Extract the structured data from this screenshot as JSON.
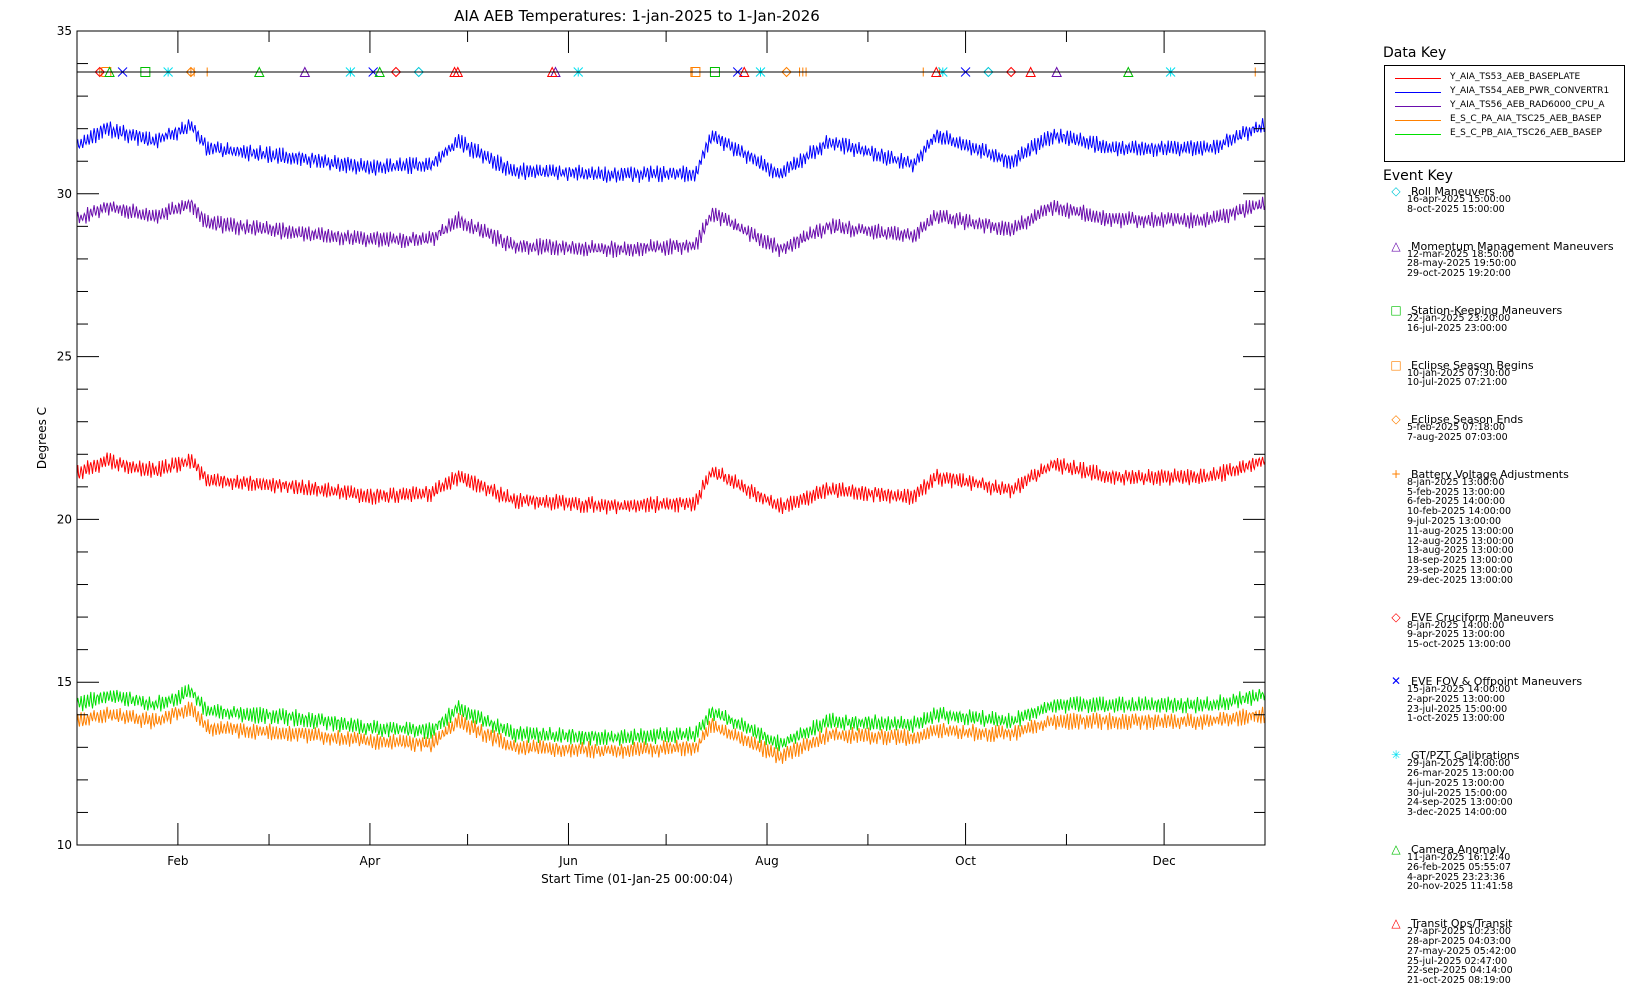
{
  "chart_data": {
    "type": "line",
    "title": "AIA AEB Temperatures: 1-jan-2025 to 1-Jan-2026",
    "xlabel": "Start Time (01-Jan-25 00:00:04)",
    "ylabel": "Degrees C",
    "xlim": [
      "2025-01-01",
      "2026-01-01"
    ],
    "ylim": [
      10,
      35
    ],
    "x_ticks": [
      "Feb",
      "Apr",
      "Jun",
      "Aug",
      "Oct",
      "Dec"
    ],
    "y_ticks": [
      10,
      15,
      20,
      25,
      30,
      35
    ],
    "series": [
      {
        "name": "Y_AIA_TS53_AEB_BASEPLATE",
        "color": "#ff0000",
        "x": [
          "2025-01-01",
          "2025-01-10",
          "2025-01-25",
          "2025-02-05",
          "2025-02-10",
          "2025-03-10",
          "2025-04-01",
          "2025-04-20",
          "2025-04-28",
          "2025-05-15",
          "2025-06-15",
          "2025-07-10",
          "2025-07-15",
          "2025-08-05",
          "2025-08-20",
          "2025-09-15",
          "2025-09-22",
          "2025-10-15",
          "2025-10-28",
          "2025-11-15",
          "2025-12-15",
          "2026-01-01"
        ],
        "values": [
          21.4,
          21.8,
          21.5,
          21.8,
          21.2,
          21.0,
          20.7,
          20.8,
          21.3,
          20.6,
          20.4,
          20.5,
          21.5,
          20.4,
          20.9,
          20.7,
          21.3,
          20.9,
          21.7,
          21.3,
          21.3,
          21.8
        ]
      },
      {
        "name": "Y_AIA_TS54_AEB_PWR_CONVERTR1",
        "color": "#0000ff",
        "x": [
          "2025-01-01",
          "2025-01-10",
          "2025-01-25",
          "2025-02-05",
          "2025-02-10",
          "2025-03-10",
          "2025-04-01",
          "2025-04-20",
          "2025-04-28",
          "2025-05-15",
          "2025-06-15",
          "2025-07-10",
          "2025-07-15",
          "2025-08-05",
          "2025-08-20",
          "2025-09-15",
          "2025-09-22",
          "2025-10-15",
          "2025-10-28",
          "2025-11-15",
          "2025-12-15",
          "2026-01-01"
        ],
        "values": [
          31.5,
          32.0,
          31.6,
          32.1,
          31.4,
          31.1,
          30.8,
          30.9,
          31.6,
          30.7,
          30.6,
          30.6,
          31.8,
          30.6,
          31.6,
          30.9,
          31.8,
          31.0,
          31.8,
          31.4,
          31.4,
          32.1
        ]
      },
      {
        "name": "Y_AIA_TS56_AEB_RAD6000_CPU_A",
        "color": "#6a0dad",
        "x": [
          "2025-01-01",
          "2025-01-10",
          "2025-01-25",
          "2025-02-05",
          "2025-02-10",
          "2025-03-10",
          "2025-04-01",
          "2025-04-20",
          "2025-04-28",
          "2025-05-15",
          "2025-06-15",
          "2025-07-10",
          "2025-07-15",
          "2025-08-05",
          "2025-08-20",
          "2025-09-15",
          "2025-09-22",
          "2025-10-15",
          "2025-10-28",
          "2025-11-15",
          "2025-12-15",
          "2026-01-01"
        ],
        "values": [
          29.2,
          29.6,
          29.3,
          29.7,
          29.1,
          28.8,
          28.6,
          28.6,
          29.2,
          28.4,
          28.3,
          28.4,
          29.4,
          28.3,
          29.0,
          28.7,
          29.3,
          28.9,
          29.6,
          29.2,
          29.2,
          29.7
        ]
      },
      {
        "name": "E_S_C_PA_AIA_TSC25_AEB_BASEP",
        "color": "#ff8000",
        "x": [
          "2025-01-01",
          "2025-01-10",
          "2025-01-25",
          "2025-02-05",
          "2025-02-10",
          "2025-03-10",
          "2025-04-01",
          "2025-04-20",
          "2025-04-28",
          "2025-05-15",
          "2025-06-15",
          "2025-07-10",
          "2025-07-15",
          "2025-08-05",
          "2025-08-20",
          "2025-09-15",
          "2025-09-22",
          "2025-10-15",
          "2025-10-28",
          "2025-11-15",
          "2025-12-15",
          "2026-01-01"
        ],
        "values": [
          13.8,
          14.0,
          13.8,
          14.2,
          13.6,
          13.4,
          13.2,
          13.1,
          13.8,
          13.0,
          12.9,
          13.0,
          13.7,
          12.7,
          13.4,
          13.3,
          13.5,
          13.4,
          13.8,
          13.8,
          13.8,
          14.0
        ]
      },
      {
        "name": "E_S_C_PB_AIA_TSC26_AEB_BASEP",
        "color": "#00e000",
        "x": [
          "2025-01-01",
          "2025-01-10",
          "2025-01-25",
          "2025-02-05",
          "2025-02-10",
          "2025-03-10",
          "2025-04-01",
          "2025-04-20",
          "2025-04-28",
          "2025-05-15",
          "2025-06-15",
          "2025-07-10",
          "2025-07-15",
          "2025-08-05",
          "2025-08-20",
          "2025-09-15",
          "2025-09-22",
          "2025-10-15",
          "2025-10-28",
          "2025-11-15",
          "2025-12-15",
          "2026-01-01"
        ],
        "values": [
          14.3,
          14.6,
          14.3,
          14.7,
          14.1,
          13.9,
          13.6,
          13.5,
          14.2,
          13.4,
          13.3,
          13.4,
          14.1,
          13.1,
          13.8,
          13.7,
          14.0,
          13.8,
          14.3,
          14.3,
          14.3,
          14.6
        ]
      }
    ]
  },
  "data_key": {
    "title": "Data Key"
  },
  "event_key": {
    "title": "Event Key",
    "events": [
      {
        "name": "Roll Maneuvers",
        "symbol": "diamond",
        "color": "#00c8d8",
        "dates": [
          "16-apr-2025 15:00:00",
          "8-oct-2025 15:00:00"
        ]
      },
      {
        "name": "Momentum Management Maneuvers",
        "symbol": "triangle",
        "color": "#6a0dad",
        "dates": [
          "12-mar-2025 18:50:00",
          "28-may-2025 19:50:00",
          "29-oct-2025 19:20:00"
        ]
      },
      {
        "name": "Station-Keeping Maneuvers",
        "symbol": "square",
        "color": "#00c000",
        "dates": [
          "22-jan-2025 23:20:00",
          "16-jul-2025 23:00:00"
        ]
      },
      {
        "name": "Eclipse Season Begins",
        "symbol": "square",
        "color": "#ff8000",
        "dates": [
          "10-jan-2025 07:30:00",
          "10-jul-2025 07:21:00"
        ]
      },
      {
        "name": "Eclipse Season Ends",
        "symbol": "diamond",
        "color": "#ff8000",
        "dates": [
          "5-feb-2025 07:18:00",
          "7-aug-2025 07:03:00"
        ]
      },
      {
        "name": "Battery Voltage Adjustments",
        "symbol": "plus",
        "color": "#ff8000",
        "dates": [
          "8-jan-2025 13:00:00",
          "5-feb-2025 13:00:00",
          "6-feb-2025 14:00:00",
          "10-feb-2025 14:00:00",
          "9-jul-2025 13:00:00",
          "11-aug-2025 13:00:00",
          "12-aug-2025 13:00:00",
          "13-aug-2025 13:00:00",
          "18-sep-2025 13:00:00",
          "23-sep-2025 13:00:00",
          "29-dec-2025 13:00:00"
        ]
      },
      {
        "name": "EVE Cruciform Maneuvers",
        "symbol": "diamond",
        "color": "#ff0000",
        "dates": [
          "8-jan-2025 14:00:00",
          "9-apr-2025 13:00:00",
          "15-oct-2025 13:00:00"
        ]
      },
      {
        "name": "EVE FOV & Offpoint Maneuvers",
        "symbol": "x",
        "color": "#0000ff",
        "dates": [
          "15-jan-2025 14:00:00",
          "2-apr-2025 13:00:00",
          "23-jul-2025 15:00:00",
          "1-oct-2025 13:00:00"
        ]
      },
      {
        "name": "GT/PZT Calibrations",
        "symbol": "asterisk",
        "color": "#00e0f0",
        "dates": [
          "29-jan-2025 14:00:00",
          "26-mar-2025 13:00:00",
          "4-jun-2025 13:00:00",
          "30-jul-2025 15:00:00",
          "24-sep-2025 13:00:00",
          "3-dec-2025 14:00:00"
        ]
      },
      {
        "name": "Camera Anomaly",
        "symbol": "triangle",
        "color": "#00c000",
        "dates": [
          "11-jan-2025 16:12:40",
          "26-feb-2025 05:55:07",
          "4-apr-2025 23:23:36",
          "20-nov-2025 11:41:58"
        ]
      },
      {
        "name": "Transit Ops/Transit",
        "symbol": "triangle",
        "color": "#ff0000",
        "dates": [
          "27-apr-2025 10:23:00",
          "28-apr-2025 04:03:00",
          "27-may-2025 05:42:00",
          "25-jul-2025 02:47:00",
          "22-sep-2025 04:14:00",
          "21-oct-2025 08:19:00"
        ]
      }
    ]
  }
}
